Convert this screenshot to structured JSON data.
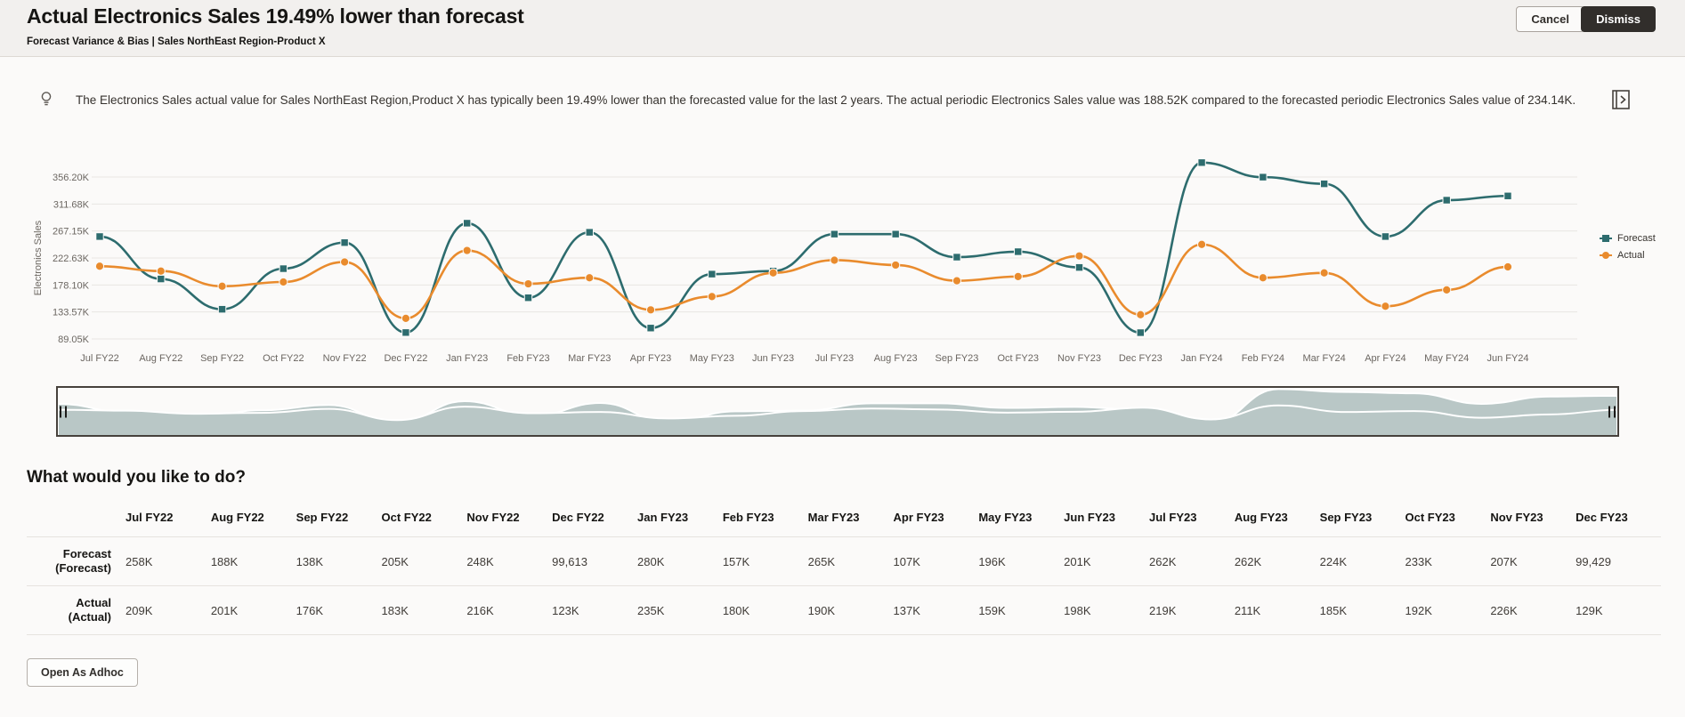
{
  "header": {
    "title": "Actual Electronics Sales 19.49% lower than forecast",
    "subtitle": "Forecast Variance & Bias | Sales NorthEast Region-Product X",
    "cancel_label": "Cancel",
    "dismiss_label": "Dismiss"
  },
  "insight": {
    "icon": "insight-lamp-icon",
    "text": "The Electronics Sales actual value for Sales NorthEast Region,Product X has typically been 19.49% lower than the forecasted value for the last 2 years. The actual periodic Electronics Sales value was 188.52K compared to the forecasted periodic Electronics Sales value of 234.14K.",
    "right_icon": "expand-panel-icon"
  },
  "colors": {
    "forecast": "#2d6c6e",
    "actual": "#e98b2d",
    "overview_fill": "#b9c7c6",
    "grid": "#e8e5e2",
    "tick_text": "#6b6661",
    "dismiss_bg": "#312e2b"
  },
  "chart_data": [
    {
      "type": "line",
      "id": "main",
      "title": "",
      "ylabel": "Electronics Sales",
      "unit": "K",
      "grid": true,
      "legend_position": "right",
      "x": [
        "Jul FY22",
        "Aug FY22",
        "Sep FY22",
        "Oct FY22",
        "Nov FY22",
        "Dec FY22",
        "Jan FY23",
        "Feb FY23",
        "Mar FY23",
        "Apr FY23",
        "May FY23",
        "Jun FY23",
        "Jul FY23",
        "Aug FY23",
        "Sep FY23",
        "Oct FY23",
        "Nov FY23",
        "Dec FY23",
        "Jan FY24",
        "Feb FY24",
        "Mar FY24",
        "Apr FY24",
        "May FY24",
        "Jun FY24"
      ],
      "ytick_labels": [
        "89.05K",
        "133.57K",
        "178.10K",
        "222.63K",
        "267.15K",
        "311.68K",
        "356.20K"
      ],
      "ytick_values": [
        89.05,
        133.57,
        178.1,
        222.63,
        267.15,
        311.68,
        356.2
      ],
      "ylim": [
        67,
        385
      ],
      "series": [
        {
          "name": "Forecast",
          "marker": "square",
          "values": [
            258,
            188,
            138,
            205,
            248,
            99.6,
            280,
            157,
            265,
            107,
            196,
            201,
            262,
            262,
            224,
            233,
            207,
            99.4,
            380,
            356,
            345,
            258,
            318,
            325
          ]
        },
        {
          "name": "Actual",
          "marker": "circle",
          "values": [
            209,
            201,
            176,
            183,
            216,
            123,
            235,
            180,
            190,
            137,
            159,
            198,
            219,
            211,
            185,
            192,
            226,
            129,
            245,
            190,
            198,
            143,
            170,
            208
          ]
        }
      ]
    },
    {
      "type": "area",
      "id": "overview",
      "title": "",
      "note": "range selector mini chart of same two series"
    }
  ],
  "legend": {
    "items": [
      "Forecast",
      "Actual"
    ]
  },
  "prompt": {
    "heading": "What would you like to do?",
    "open_adhoc_label": "Open As Adhoc"
  },
  "table": {
    "columns": [
      "Jul FY22",
      "Aug FY22",
      "Sep FY22",
      "Oct FY22",
      "Nov FY22",
      "Dec FY22",
      "Jan FY23",
      "Feb FY23",
      "Mar FY23",
      "Apr FY23",
      "May FY23",
      "Jun FY23",
      "Jul FY23",
      "Aug FY23",
      "Sep FY23",
      "Oct FY23",
      "Nov FY23",
      "Dec FY23"
    ],
    "rows": [
      {
        "label_line1": "Forecast",
        "label_line2": "(Forecast)",
        "values": [
          "258K",
          "188K",
          "138K",
          "205K",
          "248K",
          "99,613",
          "280K",
          "157K",
          "265K",
          "107K",
          "196K",
          "201K",
          "262K",
          "262K",
          "224K",
          "233K",
          "207K",
          "99,429"
        ]
      },
      {
        "label_line1": "Actual",
        "label_line2": "(Actual)",
        "values": [
          "209K",
          "201K",
          "176K",
          "183K",
          "216K",
          "123K",
          "235K",
          "180K",
          "190K",
          "137K",
          "159K",
          "198K",
          "219K",
          "211K",
          "185K",
          "192K",
          "226K",
          "129K"
        ]
      }
    ]
  }
}
